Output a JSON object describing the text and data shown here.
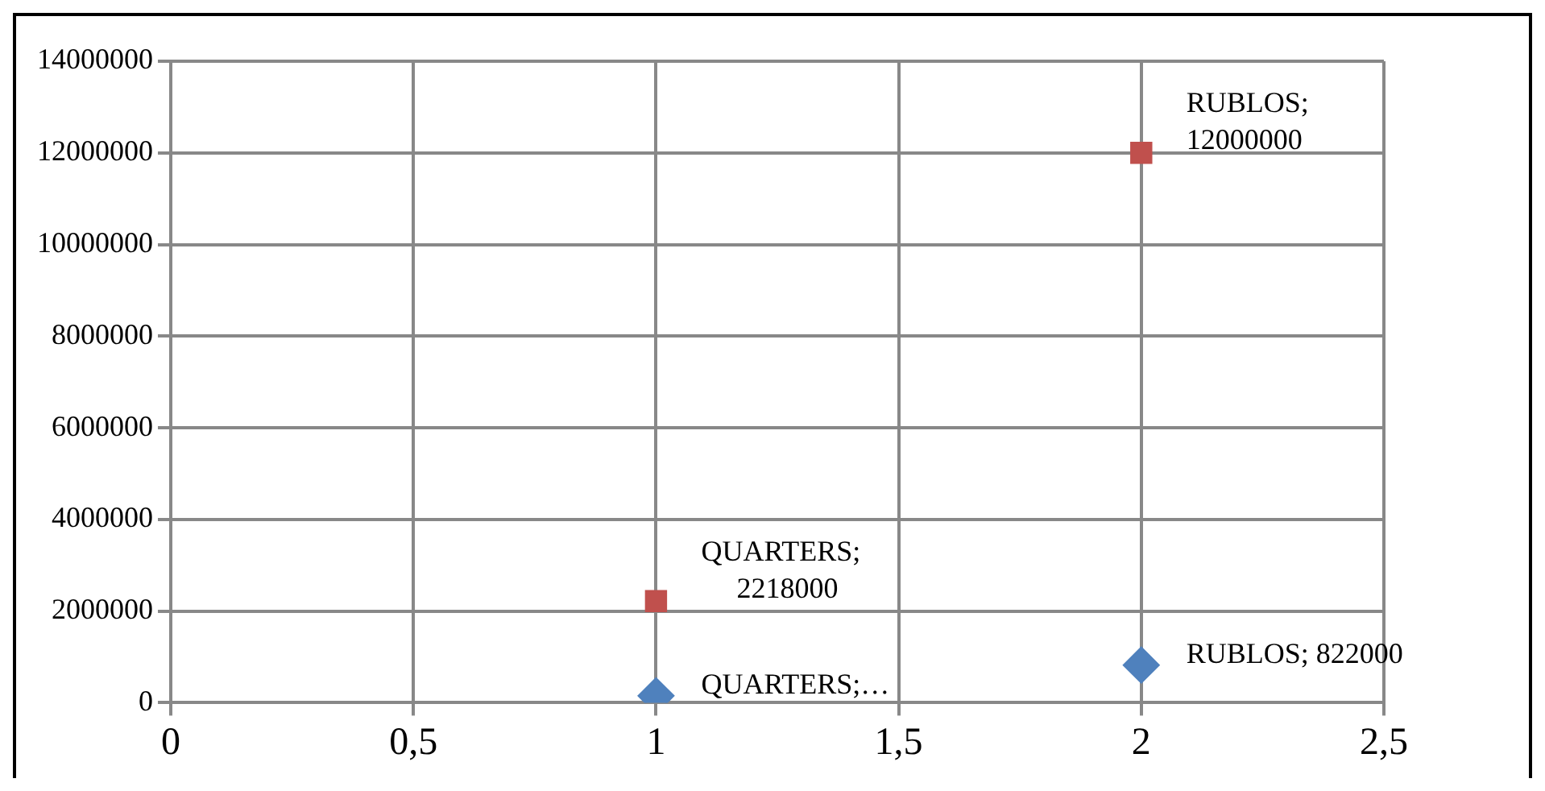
{
  "chart_data": {
    "type": "scatter",
    "x": [
      1,
      2
    ],
    "series": [
      {
        "color": "#4f81bd",
        "marker": "diamond",
        "values": [
          150000,
          822000
        ],
        "value_labels": [
          "QUARTERS;…",
          "RUBLOS; 822000"
        ]
      },
      {
        "color": "#c0504d",
        "marker": "square",
        "values": [
          2218000,
          12000000
        ],
        "value_labels": [
          "QUARTERS;\n2218000",
          "RUBLOS;\n12000000"
        ]
      }
    ],
    "xlim": [
      0,
      2.5
    ],
    "xticks": [
      0,
      {
        "value": 0.5,
        "label": "0,5"
      },
      1,
      {
        "value": 1.5,
        "label": "1,5"
      },
      2,
      {
        "value": 2.5,
        "label": "2,5"
      }
    ],
    "ylim": [
      0,
      14000000
    ],
    "yticks": [
      0,
      2000000,
      4000000,
      6000000,
      8000000,
      10000000,
      12000000,
      14000000
    ],
    "grid": true,
    "legend": false
  }
}
